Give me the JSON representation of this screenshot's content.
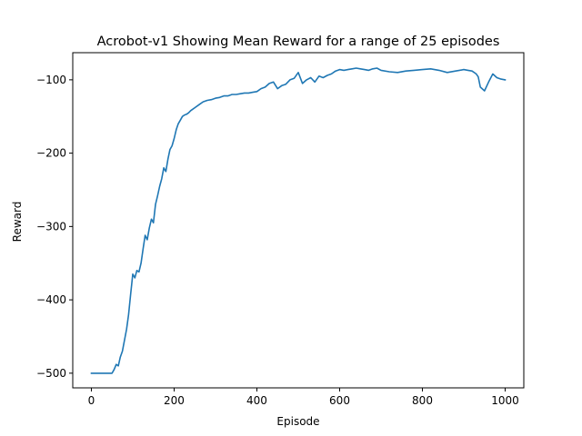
{
  "chart_data": {
    "type": "line",
    "title": "Acrobot-v1 Showing Mean Reward for a range of 25 episodes",
    "xlabel": "Episode",
    "ylabel": "Reward",
    "xlim": [
      -45,
      1045
    ],
    "ylim": [
      -520,
      -63
    ],
    "xticks": [
      0,
      200,
      400,
      600,
      800,
      1000
    ],
    "xtick_labels": [
      "0",
      "200",
      "400",
      "600",
      "800",
      "1000"
    ],
    "yticks": [
      -500,
      -400,
      -300,
      -200,
      -100
    ],
    "ytick_labels": [
      "−500",
      "−400",
      "−300",
      "−200",
      "−100"
    ],
    "grid": false,
    "line_color": "#1f77b4",
    "series": [
      {
        "x": [
          0,
          10,
          20,
          30,
          40,
          50,
          55,
          60,
          65,
          70,
          75,
          80,
          85,
          90,
          95,
          100,
          105,
          110,
          115,
          120,
          125,
          130,
          135,
          140,
          145,
          150,
          155,
          160,
          165,
          170,
          175,
          180,
          185,
          190,
          195,
          200,
          205,
          210,
          215,
          220,
          225,
          230,
          235,
          240,
          245,
          250,
          260,
          270,
          280,
          290,
          300,
          310,
          320,
          330,
          340,
          350,
          360,
          370,
          380,
          390,
          400,
          410,
          420,
          430,
          440,
          450,
          460,
          470,
          480,
          490,
          500,
          510,
          520,
          530,
          540,
          550,
          560,
          570,
          580,
          590,
          600,
          610,
          620,
          630,
          640,
          650,
          660,
          670,
          680,
          690,
          700,
          720,
          740,
          760,
          780,
          800,
          820,
          840,
          860,
          880,
          900,
          910,
          920,
          930,
          935,
          940,
          950,
          960,
          970,
          980,
          990,
          1000
        ],
        "y": [
          -500,
          -500,
          -500,
          -500,
          -500,
          -500,
          -495,
          -488,
          -490,
          -478,
          -470,
          -455,
          -440,
          -420,
          -392,
          -365,
          -370,
          -360,
          -362,
          -350,
          -330,
          -312,
          -318,
          -302,
          -290,
          -295,
          -270,
          -258,
          -245,
          -235,
          -220,
          -225,
          -208,
          -195,
          -190,
          -180,
          -168,
          -160,
          -155,
          -150,
          -148,
          -147,
          -145,
          -142,
          -140,
          -138,
          -134,
          -130,
          -128,
          -127,
          -125,
          -124,
          -122,
          -122,
          -120,
          -120,
          -119,
          -118,
          -118,
          -117,
          -116,
          -112,
          -110,
          -105,
          -103,
          -112,
          -108,
          -106,
          -100,
          -98,
          -90,
          -105,
          -100,
          -97,
          -103,
          -95,
          -97,
          -94,
          -92,
          -88,
          -86,
          -87,
          -86,
          -85,
          -84,
          -85,
          -86,
          -87,
          -85,
          -84,
          -87,
          -89,
          -90,
          -88,
          -87,
          -86,
          -85,
          -87,
          -90,
          -88,
          -86,
          -87,
          -88,
          -92,
          -96,
          -110,
          -115,
          -103,
          -92,
          -97,
          -99,
          -100
        ]
      }
    ]
  }
}
